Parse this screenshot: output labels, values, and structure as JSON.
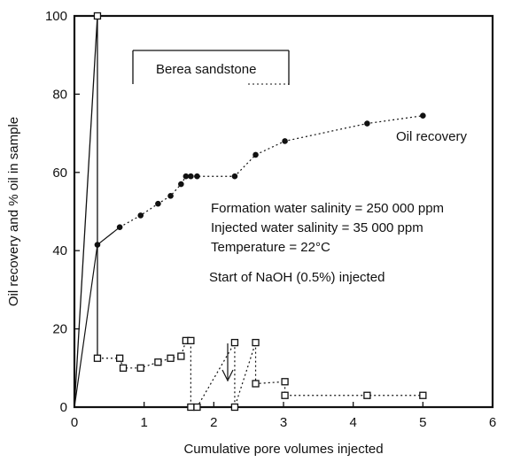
{
  "chart_data": {
    "type": "line",
    "title": "",
    "xlabel": "Cumulative pore volumes injected",
    "ylabel": "Oil recovery and % oil in sample",
    "xlim": [
      0,
      6
    ],
    "ylim": [
      0,
      100
    ],
    "xticks": [
      "0",
      "1",
      "2",
      "3",
      "4",
      "5",
      "6"
    ],
    "yticks": [
      "0",
      "20",
      "40",
      "60",
      "80",
      "100"
    ],
    "grid": false,
    "legend_box_label": "Berea sandstone",
    "series": [
      {
        "name": "Oil recovery",
        "marker": "filled-circle",
        "x": [
          0.0,
          0.33,
          0.65,
          0.95,
          1.2,
          1.38,
          1.53,
          1.6,
          1.67,
          1.76,
          2.3,
          2.6,
          3.02,
          4.2,
          5.0
        ],
        "y": [
          0.0,
          41.5,
          46,
          49,
          52,
          54,
          57,
          59,
          59,
          59,
          59,
          64.5,
          68,
          72.5,
          74.5
        ]
      },
      {
        "name": "% oil in sample",
        "marker": "open-square",
        "x": [
          0.0,
          0.33,
          0.33,
          0.65,
          0.7,
          0.95,
          1.2,
          1.38,
          1.53,
          1.6,
          1.67,
          1.67,
          1.76,
          2.3,
          2.3,
          2.6,
          2.6,
          3.02,
          3.02,
          4.2,
          5.0
        ],
        "y": [
          0.0,
          100,
          12.5,
          12.5,
          10,
          10,
          11.5,
          12.5,
          13,
          17,
          17,
          0,
          0,
          16.5,
          0,
          16.5,
          6,
          6.5,
          3,
          3,
          3
        ]
      }
    ],
    "annotations": [
      {
        "text": "Oil recovery"
      },
      {
        "text": "Formation water salinity = 250 000 ppm"
      },
      {
        "text": "Injected water salinity = 35 000 ppm"
      },
      {
        "text": "Temperature = 22°C"
      },
      {
        "text": "Start of NaOH (0.5%) injected",
        "x": 2.2
      }
    ]
  }
}
